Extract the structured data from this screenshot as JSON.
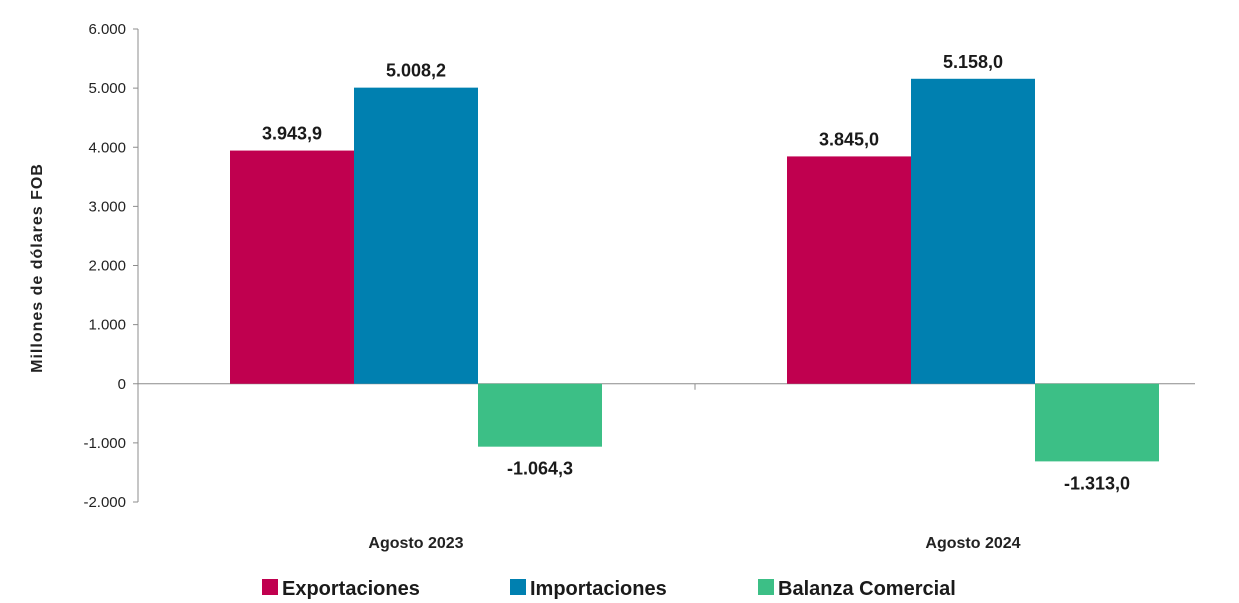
{
  "chart_data": {
    "type": "bar",
    "ylabel": "Millones de dólares FOB",
    "xlabel": "",
    "ylim": [
      -2000,
      6000
    ],
    "yticks": [
      6000,
      5000,
      4000,
      3000,
      2000,
      1000,
      0,
      -1000,
      -2000
    ],
    "ytick_labels": [
      "6.000",
      "5.000",
      "4.000",
      "3.000",
      "2.000",
      "1.000",
      "0",
      "-1.000",
      "-2.000"
    ],
    "categories": [
      "Agosto 2023",
      "Agosto 2024"
    ],
    "legend_position": "bottom",
    "series": [
      {
        "name": "Exportaciones",
        "color": "#c0004f",
        "values": [
          3943.9,
          3845.0
        ],
        "labels": [
          "3.943,9",
          "3.845,0"
        ]
      },
      {
        "name": "Importaciones",
        "color": "#0080b0",
        "values": [
          5008.2,
          5158.0
        ],
        "labels": [
          "5.008,2",
          "5.158,0"
        ]
      },
      {
        "name": "Balanza Comercial",
        "color": "#3cbf86",
        "values": [
          -1064.3,
          -1313.0
        ],
        "labels": [
          "-1.064,3",
          "-1.313,0"
        ]
      }
    ]
  }
}
